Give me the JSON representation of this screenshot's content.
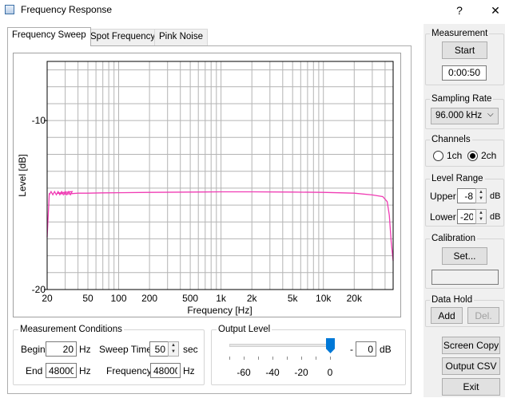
{
  "window": {
    "title": "Frequency Response",
    "help_label": "?",
    "close_label": "✕"
  },
  "tabs": [
    {
      "label": "Frequency Sweep"
    },
    {
      "label": "Spot Frequency"
    },
    {
      "label": "Pink Noise"
    }
  ],
  "chart_data": {
    "type": "line",
    "xlabel": "Frequency [Hz]",
    "ylabel": "Level [dB]",
    "x_scale": "log",
    "xlim": [
      20,
      48000
    ],
    "ylim": [
      -20,
      -6.5
    ],
    "x_ticks": [
      {
        "v": 20,
        "label": "20"
      },
      {
        "v": 50,
        "label": "50"
      },
      {
        "v": 100,
        "label": "100"
      },
      {
        "v": 200,
        "label": "200"
      },
      {
        "v": 500,
        "label": "500"
      },
      {
        "v": 1000,
        "label": "1k"
      },
      {
        "v": 2000,
        "label": "2k"
      },
      {
        "v": 5000,
        "label": "5k"
      },
      {
        "v": 10000,
        "label": "10k"
      },
      {
        "v": 20000,
        "label": "20k"
      }
    ],
    "y_ticks": [
      {
        "v": -10,
        "label": "-10"
      },
      {
        "v": -20,
        "label": "-20"
      }
    ],
    "grid": true,
    "series": [
      {
        "color": "#f03cb4",
        "x": [
          20,
          21,
          25,
          30,
          40,
          50,
          70,
          100,
          200,
          500,
          1000,
          2000,
          5000,
          10000,
          20000,
          30000,
          38000,
          42000,
          44000,
          46000,
          48000
        ],
        "y": [
          -16.9,
          -14.3,
          -14.3,
          -14.35,
          -14.3,
          -14.3,
          -14.28,
          -14.27,
          -14.25,
          -14.23,
          -14.22,
          -14.22,
          -14.23,
          -14.25,
          -14.3,
          -14.4,
          -14.5,
          -14.8,
          -15.6,
          -17.2,
          -18.3
        ]
      }
    ]
  },
  "measurement_conditions": {
    "title": "Measurement Conditions",
    "begin_label": "Begin",
    "begin_value": "20",
    "begin_unit": "Hz",
    "end_label": "End",
    "end_value": "48000",
    "end_unit": "Hz",
    "sweep_time_label": "Sweep Time",
    "sweep_time_value": "50",
    "sweep_time_unit": "sec",
    "frequency_label": "Frequency",
    "frequency_value": "48000",
    "frequency_unit": "Hz"
  },
  "output_level": {
    "title": "Output Level",
    "scale_labels": [
      "-60",
      "-40",
      "-20",
      "0"
    ],
    "value": "0",
    "sign": "-",
    "unit": "dB",
    "level_db": 0,
    "range_db": [
      -70,
      0
    ]
  },
  "side": {
    "measurement": {
      "title": "Measurement",
      "start_label": "Start",
      "elapsed": "0:00:50"
    },
    "sampling_rate": {
      "title": "Sampling Rate",
      "value": "96.000 kHz"
    },
    "channels": {
      "title": "Channels",
      "opt1": "1ch",
      "opt2": "2ch",
      "selected": "2ch"
    },
    "level_range": {
      "title": "Level Range",
      "upper_label": "Upper",
      "upper_value": "-8",
      "lower_label": "Lower",
      "lower_value": "-20",
      "unit": "dB"
    },
    "calibration": {
      "title": "Calibration",
      "set_label": "Set...",
      "value": ""
    },
    "data_hold": {
      "title": "Data Hold",
      "add_label": "Add",
      "del_label": "Del."
    },
    "screen_copy_label": "Screen Copy",
    "output_csv_label": "Output CSV",
    "exit_label": "Exit"
  },
  "icons": {
    "app": "window-app-icon",
    "dropdown": "chevron-down-icon",
    "spin_up": "spin-up-icon",
    "spin_down": "spin-down-icon"
  }
}
